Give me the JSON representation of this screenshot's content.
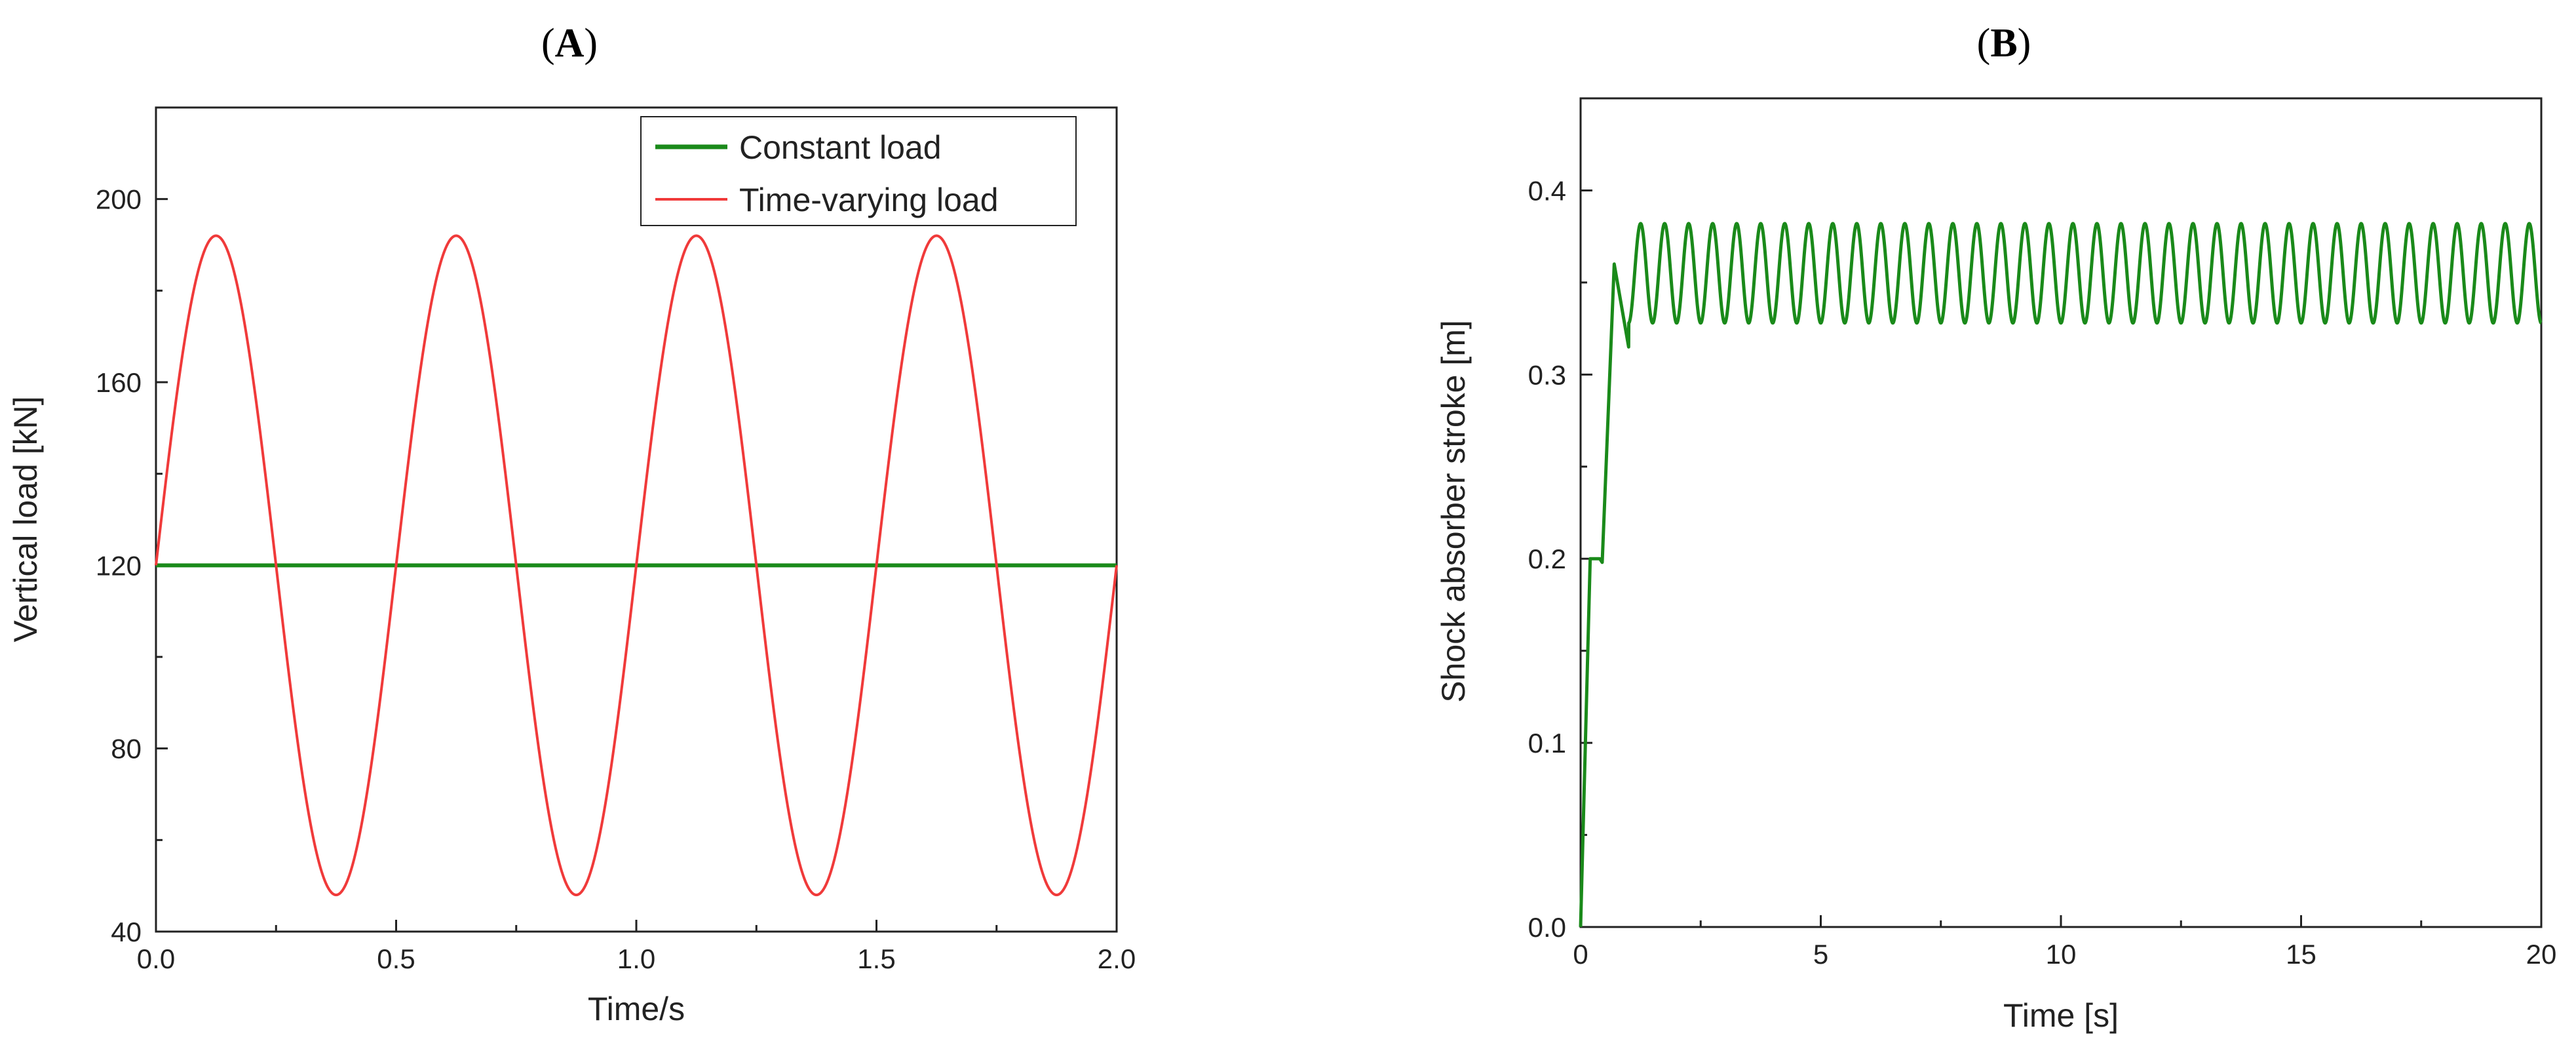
{
  "chart_data": [
    {
      "panel": "A",
      "type": "line",
      "title": "",
      "xlabel": "Time/s",
      "ylabel": "Vertical load [kN]",
      "xlim": [
        0,
        2.0
      ],
      "ylim": [
        40,
        220
      ],
      "x_ticks": [
        0.0,
        0.5,
        1.0,
        1.5,
        2.0
      ],
      "x_tick_labels": [
        "0.0",
        "0.5",
        "1.0",
        "1.5",
        "2.0"
      ],
      "y_ticks": [
        40,
        80,
        120,
        160,
        200
      ],
      "y_tick_labels": [
        "40",
        "80",
        "120",
        "160",
        "200"
      ],
      "legend_position": "top-right",
      "series": [
        {
          "name": "Constant load",
          "color": "#1a8a1a",
          "kind": "constant",
          "value": 120
        },
        {
          "name": "Time-varying load",
          "color": "#f03a3a",
          "kind": "sine",
          "mean": 120,
          "amplitude": 72,
          "frequency_hz": 2,
          "max": 192,
          "min": 48
        }
      ]
    },
    {
      "panel": "B",
      "type": "line",
      "title": "",
      "xlabel": "Time [s]",
      "ylabel": "Shock absorber stroke [m]",
      "xlim": [
        0,
        20
      ],
      "ylim": [
        0,
        0.45
      ],
      "x_ticks": [
        0,
        5,
        10,
        15,
        20
      ],
      "x_tick_labels": [
        "0",
        "5",
        "10",
        "15",
        "20"
      ],
      "y_ticks": [
        0.0,
        0.1,
        0.2,
        0.3,
        0.4
      ],
      "y_tick_labels": [
        "0.0",
        "0.1",
        "0.2",
        "0.3",
        "0.4"
      ],
      "series": [
        {
          "name": "Shock absorber stroke",
          "color": "#1a8a1a",
          "initial_points": [
            [
              0,
              0
            ],
            [
              0.2,
              0.2
            ],
            [
              0.4,
              0.2
            ],
            [
              0.45,
              0.198
            ],
            [
              0.7,
              0.36
            ],
            [
              0.9,
              0.33
            ],
            [
              1.0,
              0.315
            ]
          ],
          "steady_mean": 0.355,
          "steady_amplitude": 0.027,
          "steady_period_s": 0.5,
          "steady_max": 0.382,
          "steady_min": 0.328,
          "end_value": 0.328
        }
      ]
    }
  ]
}
